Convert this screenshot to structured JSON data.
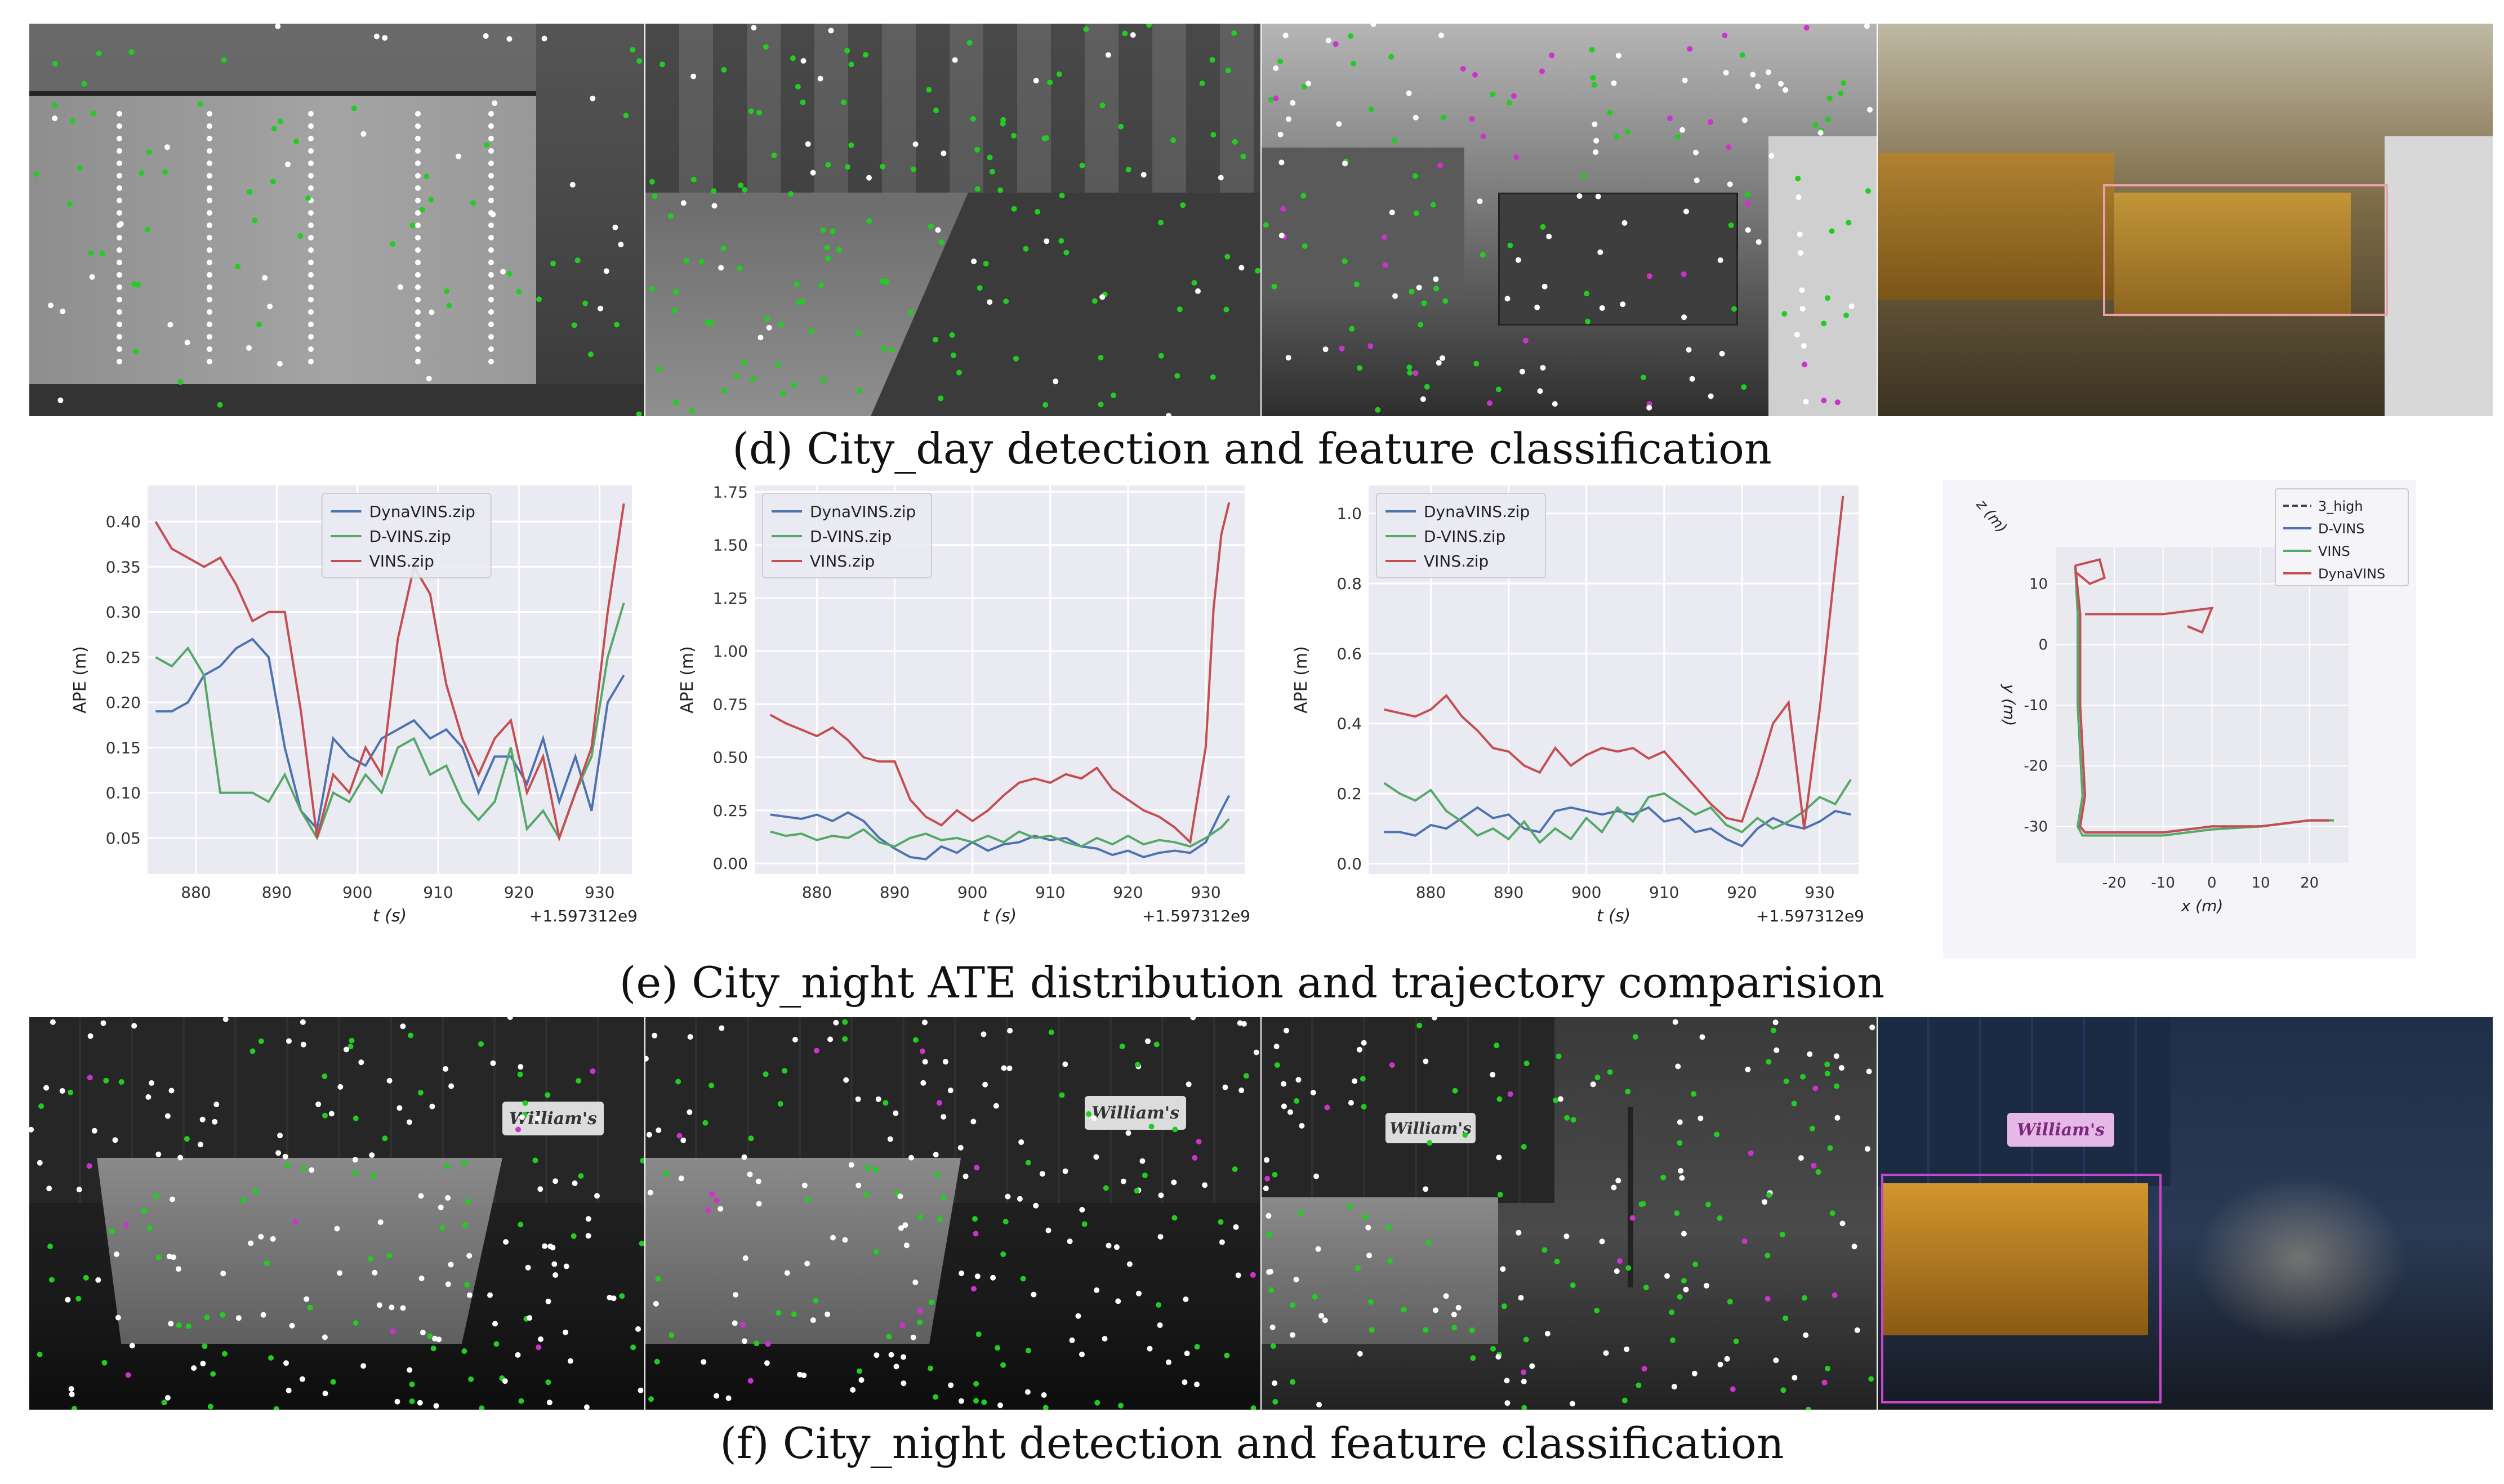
{
  "captions": {
    "d": "(d) City_day detection and feature classification",
    "e": "(e) City_night ATE distribution and trajectory comparision",
    "f": "(f) City_night detection and feature classification"
  },
  "signs": {
    "sign1": "William's",
    "sign2": "William's",
    "sign3": "William's",
    "sign4": "William's"
  },
  "colors": {
    "dynavins": "#4c72b0",
    "dvins": "#55a868",
    "vins": "#c44e52",
    "traj_ref": "#444444",
    "feature_static": "#ffffff",
    "feature_tracked": "#22cc22",
    "feature_dynamic": "#cc33cc",
    "bbox_day": "#e8a0b0",
    "bbox_night": "#cc44cc"
  },
  "chart_data": [
    {
      "type": "line",
      "xlabel": "t (s)",
      "ylabel": "APE (m)",
      "offset_label": "+1.597312e9",
      "xlim": [
        874,
        934
      ],
      "ylim": [
        0.01,
        0.44
      ],
      "xticks": [
        880,
        890,
        900,
        910,
        920,
        930
      ],
      "yticks": [
        0.05,
        0.1,
        0.15,
        0.2,
        0.25,
        0.3,
        0.35,
        0.4
      ],
      "ytick_labels": [
        "0.05",
        "0.10",
        "0.15",
        "0.20",
        "0.25",
        "0.30",
        "0.35",
        "0.40"
      ],
      "legend": "top-center",
      "series": [
        {
          "name": "DynaVINS.zip",
          "color": "#4c72b0",
          "x": [
            875,
            877,
            879,
            881,
            883,
            885,
            887,
            889,
            891,
            893,
            895,
            897,
            899,
            901,
            903,
            905,
            907,
            909,
            911,
            913,
            915,
            917,
            919,
            921,
            923,
            925,
            927,
            929,
            931,
            933
          ],
          "y": [
            0.19,
            0.19,
            0.2,
            0.23,
            0.24,
            0.26,
            0.27,
            0.25,
            0.15,
            0.08,
            0.06,
            0.16,
            0.14,
            0.13,
            0.16,
            0.17,
            0.18,
            0.16,
            0.17,
            0.15,
            0.1,
            0.14,
            0.14,
            0.11,
            0.16,
            0.09,
            0.14,
            0.08,
            0.2,
            0.23
          ]
        },
        {
          "name": "D-VINS.zip",
          "color": "#55a868",
          "x": [
            875,
            877,
            879,
            881,
            883,
            885,
            887,
            889,
            891,
            893,
            895,
            897,
            899,
            901,
            903,
            905,
            907,
            909,
            911,
            913,
            915,
            917,
            919,
            921,
            923,
            925,
            927,
            929,
            931,
            933
          ],
          "y": [
            0.25,
            0.24,
            0.26,
            0.23,
            0.1,
            0.1,
            0.1,
            0.09,
            0.12,
            0.08,
            0.05,
            0.1,
            0.09,
            0.12,
            0.1,
            0.15,
            0.16,
            0.12,
            0.13,
            0.09,
            0.07,
            0.09,
            0.15,
            0.06,
            0.08,
            0.05,
            0.1,
            0.14,
            0.25,
            0.31
          ]
        },
        {
          "name": "VINS.zip",
          "color": "#c44e52",
          "x": [
            875,
            877,
            879,
            881,
            883,
            885,
            887,
            889,
            891,
            893,
            895,
            897,
            899,
            901,
            903,
            905,
            907,
            909,
            911,
            913,
            915,
            917,
            919,
            921,
            923,
            925,
            927,
            929,
            931,
            933
          ],
          "y": [
            0.4,
            0.37,
            0.36,
            0.35,
            0.36,
            0.33,
            0.29,
            0.3,
            0.3,
            0.19,
            0.05,
            0.12,
            0.1,
            0.15,
            0.12,
            0.27,
            0.35,
            0.32,
            0.22,
            0.16,
            0.12,
            0.16,
            0.18,
            0.1,
            0.14,
            0.05,
            0.1,
            0.15,
            0.3,
            0.42
          ]
        }
      ]
    },
    {
      "type": "line",
      "xlabel": "t (s)",
      "ylabel": "APE (m)",
      "offset_label": "+1.597312e9",
      "xlim": [
        872,
        935
      ],
      "ylim": [
        -0.05,
        1.78
      ],
      "xticks": [
        880,
        890,
        900,
        910,
        920,
        930
      ],
      "yticks": [
        0.0,
        0.25,
        0.5,
        0.75,
        1.0,
        1.25,
        1.5,
        1.75
      ],
      "ytick_labels": [
        "0.00",
        "0.25",
        "0.50",
        "0.75",
        "1.00",
        "1.25",
        "1.50",
        "1.75"
      ],
      "legend": "top-left",
      "series": [
        {
          "name": "DynaVINS.zip",
          "color": "#4c72b0",
          "x": [
            874,
            876,
            878,
            880,
            882,
            884,
            886,
            888,
            890,
            892,
            894,
            896,
            898,
            900,
            902,
            904,
            906,
            908,
            910,
            912,
            914,
            916,
            918,
            920,
            922,
            924,
            926,
            928,
            930,
            932,
            933
          ],
          "y": [
            0.23,
            0.22,
            0.21,
            0.23,
            0.2,
            0.24,
            0.2,
            0.12,
            0.07,
            0.03,
            0.02,
            0.08,
            0.05,
            0.1,
            0.06,
            0.09,
            0.1,
            0.13,
            0.11,
            0.12,
            0.08,
            0.07,
            0.04,
            0.06,
            0.03,
            0.05,
            0.06,
            0.05,
            0.1,
            0.25,
            0.32
          ]
        },
        {
          "name": "D-VINS.zip",
          "color": "#55a868",
          "x": [
            874,
            876,
            878,
            880,
            882,
            884,
            886,
            888,
            890,
            892,
            894,
            896,
            898,
            900,
            902,
            904,
            906,
            908,
            910,
            912,
            914,
            916,
            918,
            920,
            922,
            924,
            926,
            928,
            930,
            932,
            933
          ],
          "y": [
            0.15,
            0.13,
            0.14,
            0.11,
            0.13,
            0.12,
            0.16,
            0.1,
            0.08,
            0.12,
            0.14,
            0.11,
            0.12,
            0.1,
            0.13,
            0.1,
            0.15,
            0.12,
            0.13,
            0.1,
            0.08,
            0.12,
            0.09,
            0.13,
            0.09,
            0.11,
            0.1,
            0.08,
            0.12,
            0.17,
            0.21
          ]
        },
        {
          "name": "VINS.zip",
          "color": "#c44e52",
          "x": [
            874,
            876,
            878,
            880,
            882,
            884,
            886,
            888,
            890,
            892,
            894,
            896,
            898,
            900,
            902,
            904,
            906,
            908,
            910,
            912,
            914,
            916,
            918,
            920,
            922,
            924,
            926,
            928,
            930,
            931,
            932,
            933
          ],
          "y": [
            0.7,
            0.66,
            0.63,
            0.6,
            0.64,
            0.58,
            0.5,
            0.48,
            0.48,
            0.3,
            0.22,
            0.18,
            0.25,
            0.2,
            0.25,
            0.32,
            0.38,
            0.4,
            0.38,
            0.42,
            0.4,
            0.45,
            0.35,
            0.3,
            0.25,
            0.22,
            0.17,
            0.1,
            0.55,
            1.2,
            1.55,
            1.7
          ]
        }
      ]
    },
    {
      "type": "line",
      "xlabel": "t (s)",
      "ylabel": "APE (m)",
      "offset_label": "+1.597312e9",
      "xlim": [
        872,
        935
      ],
      "ylim": [
        -0.03,
        1.08
      ],
      "xticks": [
        880,
        890,
        900,
        910,
        920,
        930
      ],
      "yticks": [
        0.0,
        0.2,
        0.4,
        0.6,
        0.8,
        1.0
      ],
      "ytick_labels": [
        "0.0",
        "0.2",
        "0.4",
        "0.6",
        "0.8",
        "1.0"
      ],
      "legend": "top-left",
      "series": [
        {
          "name": "DynaVINS.zip",
          "color": "#4c72b0",
          "x": [
            874,
            876,
            878,
            880,
            882,
            884,
            886,
            888,
            890,
            892,
            894,
            896,
            898,
            900,
            902,
            904,
            906,
            908,
            910,
            912,
            914,
            916,
            918,
            920,
            922,
            924,
            926,
            928,
            930,
            932,
            934
          ],
          "y": [
            0.09,
            0.09,
            0.08,
            0.11,
            0.1,
            0.13,
            0.16,
            0.13,
            0.14,
            0.1,
            0.09,
            0.15,
            0.16,
            0.15,
            0.14,
            0.15,
            0.14,
            0.16,
            0.12,
            0.13,
            0.09,
            0.1,
            0.07,
            0.05,
            0.1,
            0.13,
            0.11,
            0.1,
            0.12,
            0.15,
            0.14
          ]
        },
        {
          "name": "D-VINS.zip",
          "color": "#55a868",
          "x": [
            874,
            876,
            878,
            880,
            882,
            884,
            886,
            888,
            890,
            892,
            894,
            896,
            898,
            900,
            902,
            904,
            906,
            908,
            910,
            912,
            914,
            916,
            918,
            920,
            922,
            924,
            926,
            928,
            930,
            932,
            934
          ],
          "y": [
            0.23,
            0.2,
            0.18,
            0.21,
            0.15,
            0.12,
            0.08,
            0.1,
            0.07,
            0.12,
            0.06,
            0.1,
            0.07,
            0.13,
            0.09,
            0.16,
            0.12,
            0.19,
            0.2,
            0.17,
            0.14,
            0.16,
            0.11,
            0.09,
            0.13,
            0.1,
            0.12,
            0.15,
            0.19,
            0.17,
            0.24
          ]
        },
        {
          "name": "VINS.zip",
          "color": "#c44e52",
          "x": [
            874,
            876,
            878,
            880,
            882,
            884,
            886,
            888,
            890,
            892,
            894,
            896,
            898,
            900,
            902,
            904,
            906,
            908,
            910,
            912,
            914,
            916,
            918,
            920,
            922,
            924,
            926,
            928,
            930,
            932,
            933
          ],
          "y": [
            0.44,
            0.43,
            0.42,
            0.44,
            0.48,
            0.42,
            0.38,
            0.33,
            0.32,
            0.28,
            0.26,
            0.33,
            0.28,
            0.31,
            0.33,
            0.32,
            0.33,
            0.3,
            0.32,
            0.27,
            0.22,
            0.17,
            0.13,
            0.12,
            0.25,
            0.4,
            0.46,
            0.1,
            0.44,
            0.85,
            1.05
          ]
        }
      ]
    },
    {
      "type": "line",
      "xlabel": "x (m)",
      "ylabel": "y (m)",
      "zlabel": "z (m)",
      "xlim": [
        -32,
        28
      ],
      "ylim": [
        -36,
        16
      ],
      "xticks": [
        -20,
        -10,
        0,
        10,
        20
      ],
      "yticks": [
        10,
        0,
        -10,
        -20,
        -30
      ],
      "legend": "top-right",
      "series": [
        {
          "name": "3_high",
          "color": "#444444",
          "dash": true,
          "x": [
            -28,
            -27,
            -27,
            -26,
            -27,
            -26,
            -25,
            -22,
            -10,
            0,
            10,
            20,
            24
          ],
          "y": [
            13,
            5,
            -10,
            -25,
            -30,
            -31,
            -31,
            -31,
            -31,
            -30,
            -30,
            -29,
            -29
          ]
        },
        {
          "name": "D-VINS",
          "color": "#4c72b0",
          "x": [
            -28,
            -27,
            -27,
            -26,
            -27,
            -26,
            -25,
            -22,
            -10,
            0,
            10,
            20,
            24
          ],
          "y": [
            13,
            5,
            -10,
            -25,
            -30,
            -31,
            -31,
            -31,
            -31,
            -30,
            -30,
            -29,
            -29
          ]
        },
        {
          "name": "VINS",
          "color": "#55a868",
          "x": [
            -28,
            -27.5,
            -27.5,
            -26.5,
            -27.5,
            -26.5,
            -25,
            -22,
            -10,
            0,
            10,
            20,
            25
          ],
          "y": [
            13,
            5,
            -10,
            -25,
            -30,
            -31.5,
            -31.5,
            -31.5,
            -31.5,
            -30.5,
            -30,
            -29,
            -29
          ]
        },
        {
          "name": "DynaVINS",
          "color": "#c44e52",
          "x": [
            -28,
            -27,
            -27,
            -26,
            -27,
            -26,
            -25,
            -22,
            -10,
            0,
            10,
            20,
            24
          ],
          "y": [
            13,
            5,
            -10,
            -25,
            -30,
            -31,
            -31,
            -31,
            -31,
            -30,
            -30,
            -29,
            -29
          ]
        }
      ]
    }
  ]
}
